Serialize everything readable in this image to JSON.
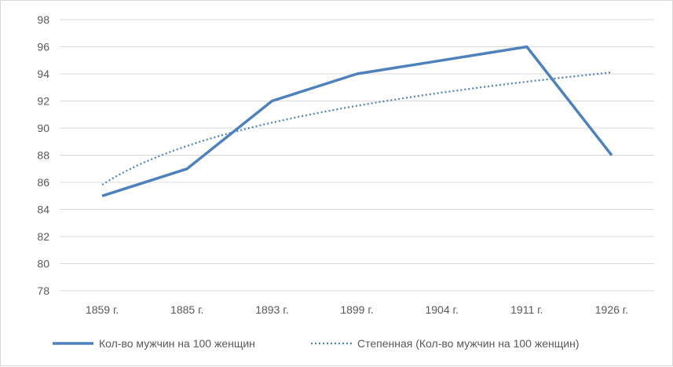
{
  "chart_data": {
    "type": "line",
    "categories": [
      "1859 г.",
      "1885 г.",
      "1893 г.",
      "1899 г.",
      "1904 г.",
      "1911 г.",
      "1926 г."
    ],
    "series": [
      {
        "name": "Кол-во мужчин на 100 женщин",
        "values": [
          85,
          87,
          92,
          94,
          95,
          96,
          88
        ],
        "color": "#4f81bd",
        "style": "solid"
      },
      {
        "name": "Степенная (Кол-во мужчин на 100 женщин)",
        "values": [
          85.8,
          88.7,
          90.4,
          91.7,
          92.6,
          93.4,
          94.1
        ],
        "color": "#4f81bd",
        "style": "dotted"
      }
    ],
    "ylim": [
      78,
      98
    ],
    "yticks": [
      "78",
      "80",
      "82",
      "84",
      "86",
      "88",
      "90",
      "92",
      "94",
      "96",
      "98"
    ],
    "grid": true,
    "legend_position": "bottom",
    "title": "",
    "xlabel": "",
    "ylabel": ""
  }
}
